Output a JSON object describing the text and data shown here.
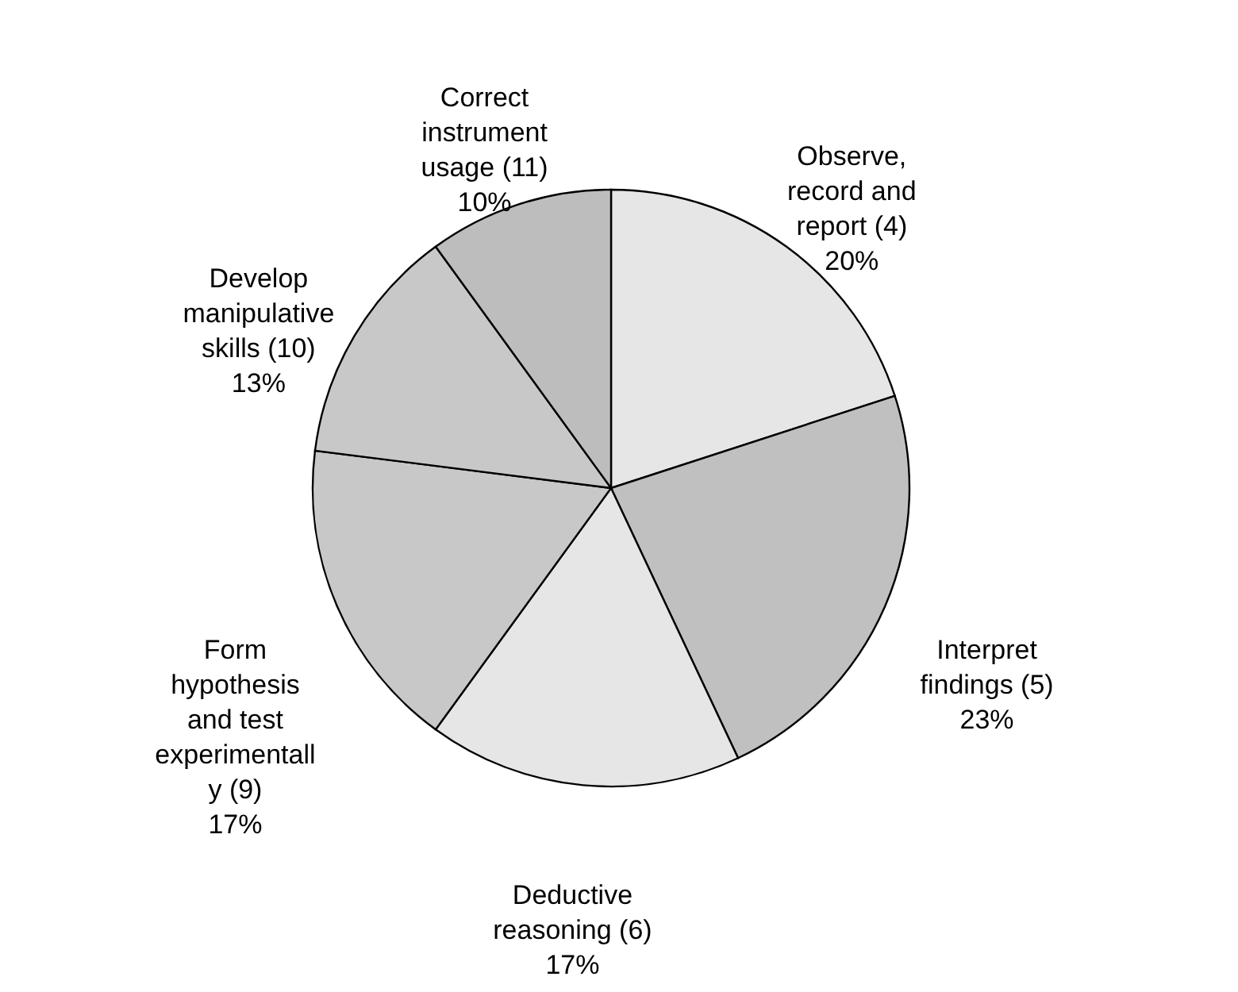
{
  "chart_data": {
    "type": "pie",
    "categories": [
      "Observe, record and report (4)",
      "Interpret findings (5)",
      "Deductive reasoning (6)",
      "Form hypothesis and test experimentally (9)",
      "Develop manipulative skills (10)",
      "Correct instrument usage (11)"
    ],
    "values": [
      20,
      23,
      17,
      17,
      13,
      10
    ],
    "value_labels": [
      "20%",
      "23%",
      "17%",
      "17%",
      "13%",
      "10%"
    ],
    "colors": [
      "#e6e6e6",
      "#c0c0c0",
      "#e6e6e6",
      "#c8c8c8",
      "#c8c8c8",
      "#bdbdbd"
    ],
    "legend": false
  }
}
